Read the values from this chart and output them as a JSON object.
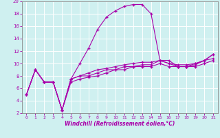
{
  "xlabel": "Windchill (Refroidissement éolien,°C)",
  "background_color": "#cff0f0",
  "line_color": "#aa00aa",
  "grid_color": "#ffffff",
  "xlim": [
    -0.5,
    21.5
  ],
  "ylim": [
    2,
    20
  ],
  "xticks": [
    0,
    1,
    2,
    3,
    4,
    5,
    6,
    7,
    8,
    9,
    10,
    11,
    12,
    13,
    14,
    15,
    16,
    17,
    18,
    19,
    20,
    21
  ],
  "yticks": [
    2,
    4,
    6,
    8,
    10,
    12,
    14,
    16,
    18,
    20
  ],
  "x": [
    0,
    1,
    2,
    3,
    4,
    5,
    6,
    7,
    8,
    9,
    10,
    11,
    12,
    13,
    14,
    15,
    16,
    17,
    18,
    19,
    20,
    21
  ],
  "lines": [
    [
      5.0,
      9.0,
      7.0,
      7.0,
      2.5,
      7.5,
      10.0,
      12.5,
      15.5,
      17.5,
      18.5,
      19.2,
      19.5,
      19.5,
      18.0,
      10.5,
      10.5,
      9.5,
      9.5,
      10.0,
      10.5,
      11.5
    ],
    [
      5.0,
      9.0,
      7.0,
      7.0,
      2.5,
      7.5,
      8.0,
      8.5,
      9.0,
      9.2,
      9.5,
      9.8,
      10.0,
      10.2,
      10.2,
      10.5,
      10.0,
      9.8,
      9.8,
      10.0,
      10.5,
      11.5
    ],
    [
      5.0,
      9.0,
      7.0,
      7.0,
      2.5,
      7.5,
      8.0,
      8.0,
      8.5,
      9.0,
      9.0,
      9.5,
      9.5,
      9.8,
      9.8,
      10.5,
      10.0,
      9.5,
      9.5,
      9.8,
      10.5,
      10.8
    ],
    [
      5.0,
      9.0,
      7.0,
      7.0,
      2.5,
      7.0,
      7.5,
      7.8,
      8.0,
      8.5,
      9.0,
      9.0,
      9.5,
      9.5,
      9.5,
      10.0,
      9.5,
      9.5,
      9.5,
      9.5,
      10.0,
      10.5
    ]
  ],
  "marker": "+",
  "markersize": 3,
  "linewidth": 0.8
}
